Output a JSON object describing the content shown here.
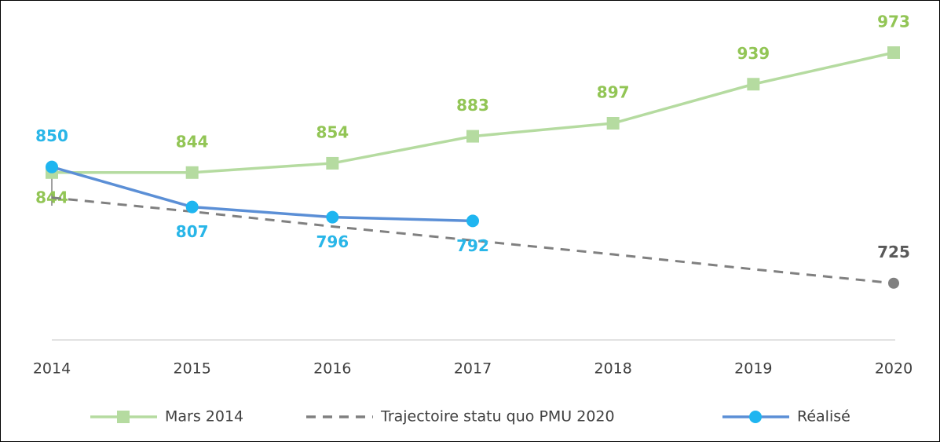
{
  "chart_data": {
    "type": "line",
    "categories": [
      "2014",
      "2015",
      "2016",
      "2017",
      "2018",
      "2019",
      "2020"
    ],
    "series": [
      {
        "name": "Mars 2014",
        "color": "#b5dba0",
        "label_color": "#92c555",
        "marker": "square",
        "values": [
          844,
          844,
          854,
          883,
          897,
          939,
          973
        ]
      },
      {
        "name": "Trajectoire statu quo PMU 2020",
        "color": "#808080",
        "label_color": "#595959",
        "marker": "end-circle",
        "dashed": true,
        "values": [
          817,
          802,
          786,
          771,
          756,
          740,
          725
        ],
        "value_labels": [
          null,
          null,
          null,
          null,
          null,
          null,
          "725"
        ]
      },
      {
        "name": "Réalisé",
        "color": "#5b8fd6",
        "label_color": "#29b6e8",
        "marker": "circle",
        "marker_color": "#1fb5f0",
        "values": [
          850,
          807,
          796,
          792,
          null,
          null,
          null
        ]
      }
    ],
    "ylim": [
      664,
      1000
    ]
  }
}
